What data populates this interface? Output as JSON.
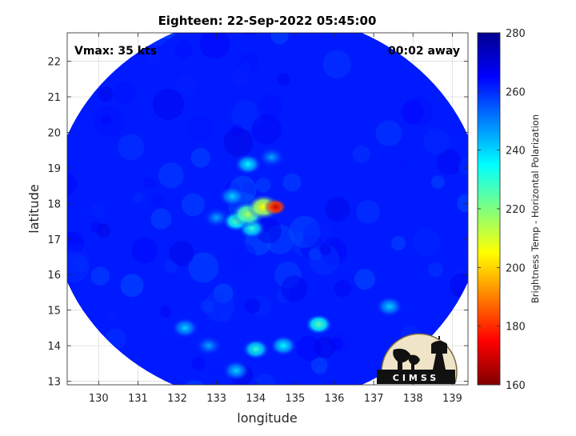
{
  "chart_data": {
    "type": "heatmap",
    "title": "Eighteen: 22-Sep-2022 05:45:00",
    "xlabel": "longitude",
    "ylabel": "latitude",
    "xlim": [
      129.2,
      139.4
    ],
    "ylim": [
      12.9,
      22.8
    ],
    "xticks": [
      "130",
      "131",
      "132",
      "133",
      "134",
      "135",
      "136",
      "137",
      "138",
      "139"
    ],
    "yticks": [
      "13",
      "14",
      "15",
      "16",
      "17",
      "18",
      "19",
      "20",
      "21",
      "22"
    ],
    "grid": true,
    "annotations": {
      "left": "Vmax: 35 kts",
      "right": "00:02 away"
    },
    "colorbar": {
      "label": "Brightness Temp - Horizontal Polarization",
      "range": [
        160,
        280
      ],
      "ticks": [
        "160",
        "180",
        "200",
        "220",
        "240",
        "260",
        "280"
      ],
      "colors": [
        "#7f0000",
        "#ff0000",
        "#ff8000",
        "#ffff00",
        "#80ff80",
        "#00ffff",
        "#0080ff",
        "#0000ff",
        "#00008f"
      ]
    },
    "field": {
      "background_value": 262,
      "swath_center": [
        134.3,
        17.85
      ],
      "swath_radius_deg": 5.5,
      "features": [
        {
          "lon": 134.5,
          "lat": 17.9,
          "value": 170
        },
        {
          "lon": 134.2,
          "lat": 17.9,
          "value": 205
        },
        {
          "lon": 133.8,
          "lat": 17.7,
          "value": 215
        },
        {
          "lon": 133.5,
          "lat": 17.5,
          "value": 225
        },
        {
          "lon": 133.9,
          "lat": 17.3,
          "value": 230
        },
        {
          "lon": 133.4,
          "lat": 18.2,
          "value": 240
        },
        {
          "lon": 133.8,
          "lat": 19.1,
          "value": 235
        },
        {
          "lon": 134.4,
          "lat": 19.3,
          "value": 245
        },
        {
          "lon": 133.0,
          "lat": 17.6,
          "value": 245
        },
        {
          "lon": 135.6,
          "lat": 14.6,
          "value": 225
        },
        {
          "lon": 134.0,
          "lat": 13.9,
          "value": 230
        },
        {
          "lon": 134.7,
          "lat": 14.0,
          "value": 235
        },
        {
          "lon": 132.2,
          "lat": 14.5,
          "value": 240
        },
        {
          "lon": 133.5,
          "lat": 13.3,
          "value": 240
        },
        {
          "lon": 137.4,
          "lat": 15.1,
          "value": 240
        },
        {
          "lon": 132.8,
          "lat": 14.0,
          "value": 245
        }
      ]
    }
  },
  "logo": {
    "text": "CIMSS"
  }
}
